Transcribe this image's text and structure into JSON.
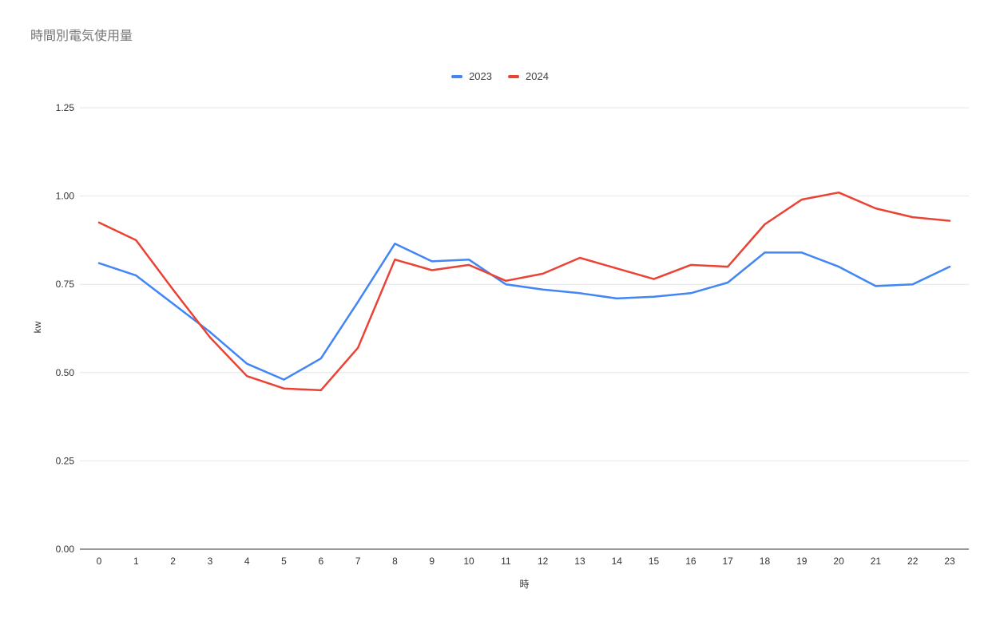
{
  "title": "時間別電気使用量",
  "chart_data": {
    "type": "line",
    "title": "時間別電気使用量",
    "xlabel": "時",
    "ylabel": "kw",
    "categories": [
      "0",
      "1",
      "2",
      "3",
      "4",
      "5",
      "6",
      "7",
      "8",
      "9",
      "10",
      "11",
      "12",
      "13",
      "14",
      "15",
      "16",
      "17",
      "18",
      "19",
      "20",
      "21",
      "22",
      "23"
    ],
    "ylim": [
      0,
      1.25
    ],
    "ytick_values": [
      0,
      0.25,
      0.5,
      0.75,
      1.0,
      1.25
    ],
    "ytick_labels": [
      "0.00",
      "0.25",
      "0.50",
      "0.75",
      "1.00",
      "1.25"
    ],
    "grid": true,
    "legend_position": "top",
    "grid_color": "#e6e6e6",
    "axis_color": "#333333",
    "series": [
      {
        "name": "2023",
        "color": "#4285F4",
        "values": [
          0.81,
          0.775,
          0.695,
          0.615,
          0.525,
          0.48,
          0.54,
          0.7,
          0.865,
          0.815,
          0.82,
          0.75,
          0.735,
          0.725,
          0.71,
          0.715,
          0.725,
          0.755,
          0.84,
          0.84,
          0.8,
          0.745,
          0.75,
          0.8
        ]
      },
      {
        "name": "2024",
        "color": "#EA4335",
        "values": [
          0.925,
          0.875,
          0.735,
          0.6,
          0.49,
          0.455,
          0.45,
          0.57,
          0.82,
          0.79,
          0.805,
          0.76,
          0.78,
          0.825,
          0.795,
          0.765,
          0.805,
          0.8,
          0.92,
          0.99,
          1.01,
          0.965,
          0.94,
          0.93
        ]
      }
    ]
  }
}
